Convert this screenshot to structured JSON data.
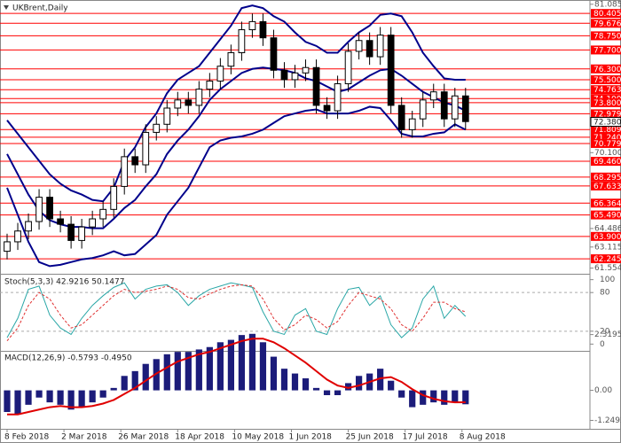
{
  "chart_data": [
    {
      "type": "candlestick",
      "title": "UKBrent,Daily",
      "x": [
        0,
        3,
        6,
        9,
        12,
        15,
        18,
        21,
        24,
        27,
        30,
        33,
        36,
        39,
        42,
        45,
        48,
        51,
        54,
        57,
        60,
        63,
        66,
        69,
        72,
        75,
        78,
        81,
        84,
        87,
        90,
        93,
        96,
        99,
        102,
        105,
        108,
        111,
        114,
        117,
        120,
        123,
        126,
        129
      ],
      "open": [
        62.8,
        63.5,
        64.3,
        65.0,
        66.8,
        65.2,
        64.8,
        63.6,
        64.6,
        65.2,
        65.9,
        67.6,
        69.8,
        69.2,
        71.6,
        72.2,
        73.4,
        74.0,
        73.6,
        74.8,
        75.4,
        76.5,
        77.5,
        79.2,
        79.8,
        78.6,
        76.2,
        75.5,
        76.0,
        76.4,
        73.6,
        73.2,
        75.2,
        77.6,
        78.4,
        77.2,
        78.8,
        73.6,
        71.8,
        72.6,
        74.0,
        74.6,
        72.6,
        74.3
      ],
      "high": [
        64.1,
        64.9,
        65.6,
        67.4,
        67.4,
        65.8,
        65.4,
        65.2,
        65.8,
        66.5,
        68.2,
        70.4,
        70.4,
        72.2,
        72.8,
        74.0,
        74.6,
        74.6,
        75.4,
        76.0,
        77.1,
        78.1,
        79.8,
        80.4,
        80.4,
        79.2,
        76.8,
        76.6,
        77.0,
        77.0,
        74.2,
        75.8,
        78.2,
        79.0,
        79.0,
        79.4,
        79.4,
        74.2,
        73.2,
        74.6,
        75.2,
        75.2,
        74.9,
        74.9
      ],
      "low": [
        62.2,
        62.9,
        63.7,
        64.4,
        64.6,
        64.2,
        63.0,
        63.0,
        64.0,
        64.6,
        65.3,
        67.0,
        68.6,
        68.6,
        71.0,
        71.6,
        72.8,
        73.0,
        73.0,
        74.2,
        74.8,
        75.9,
        76.9,
        78.6,
        78.0,
        75.6,
        74.9,
        74.9,
        75.4,
        73.0,
        72.6,
        72.6,
        74.6,
        77.0,
        76.6,
        76.6,
        73.0,
        71.2,
        71.2,
        72.0,
        73.4,
        72.0,
        72.0,
        71.8
      ],
      "close": [
        63.5,
        64.3,
        65.0,
        66.8,
        65.2,
        64.8,
        63.6,
        64.6,
        65.2,
        65.9,
        67.6,
        69.8,
        69.2,
        71.6,
        72.2,
        73.4,
        74.0,
        73.6,
        74.8,
        75.4,
        76.5,
        77.5,
        79.2,
        79.8,
        78.6,
        76.2,
        75.5,
        76.0,
        76.4,
        73.6,
        73.2,
        75.2,
        77.6,
        78.4,
        77.2,
        78.8,
        73.6,
        71.8,
        72.6,
        74.0,
        74.6,
        72.6,
        74.3,
        72.4
      ],
      "bands": {
        "color": "#00008b",
        "upper": [
          72.5,
          71.5,
          70.5,
          69.5,
          68.5,
          67.8,
          67.3,
          67.0,
          66.6,
          66.5,
          67.5,
          69.5,
          70.5,
          72.0,
          73.0,
          74.5,
          75.5,
          76.0,
          76.5,
          77.5,
          78.5,
          79.5,
          80.8,
          81.0,
          80.8,
          80.2,
          79.8,
          79.0,
          78.3,
          78.0,
          77.5,
          77.5,
          78.3,
          79.0,
          79.5,
          80.3,
          80.4,
          80.2,
          79.0,
          77.5,
          76.5,
          75.6,
          75.5,
          75.5
        ],
        "middle": [
          70.0,
          68.5,
          67.0,
          65.8,
          65.1,
          64.8,
          64.6,
          64.6,
          64.5,
          64.5,
          65.2,
          66.0,
          66.6,
          67.6,
          68.5,
          70.0,
          71.0,
          71.8,
          72.8,
          74.0,
          74.8,
          75.4,
          76.0,
          76.3,
          76.4,
          76.3,
          76.2,
          76.0,
          75.6,
          75.4,
          75.0,
          74.6,
          74.8,
          75.3,
          75.8,
          76.2,
          76.3,
          75.8,
          75.2,
          74.6,
          74.2,
          73.8,
          73.6,
          73.2
        ],
        "lower": [
          67.5,
          65.5,
          63.5,
          62.0,
          61.7,
          61.8,
          62.0,
          62.2,
          62.3,
          62.5,
          62.8,
          62.5,
          62.6,
          63.3,
          64.0,
          65.5,
          66.5,
          67.5,
          69.0,
          70.5,
          71.0,
          71.2,
          71.3,
          71.5,
          71.8,
          72.3,
          72.8,
          73.0,
          73.2,
          73.3,
          73.0,
          73.0,
          73.0,
          73.2,
          73.5,
          73.4,
          72.5,
          71.5,
          71.3,
          71.3,
          71.5,
          71.6,
          72.2,
          71.8
        ]
      },
      "xlim": [
        -1,
        164
      ],
      "xticks": [
        {
          "value": 0,
          "label": "8 Feb 2018"
        },
        {
          "value": 16,
          "label": "2 Mar 2018"
        },
        {
          "value": 32,
          "label": "26 Mar 2018"
        },
        {
          "value": 48,
          "label": "18 Apr 2018"
        },
        {
          "value": 64,
          "label": "10 May 2018"
        },
        {
          "value": 80,
          "label": "1 Jun 2018"
        },
        {
          "value": 96,
          "label": "25 Jun 2018"
        },
        {
          "value": 112,
          "label": "17 Jul 2018"
        },
        {
          "value": 128,
          "label": "8 Aug 2018"
        }
      ],
      "ylim": [
        61.2,
        81.4
      ],
      "yticks": [
        81.085,
        {
          "value": 70.1,
          "label": "70.100"
        },
        64.486,
        63.115,
        61.554
      ],
      "level_color": "#ff0000",
      "levels": [
        80.405,
        79.676,
        {
          "value": 78.75,
          "label": "78.750"
        },
        {
          "value": 77.7,
          "label": "77.700"
        },
        {
          "value": 76.3,
          "label": "76.300"
        },
        {
          "value": 75.5,
          "label": "75.500"
        },
        74.763,
        {
          "value": 74.1,
          "label": "74.100"
        },
        {
          "value": 73.8,
          "label": "73.800"
        },
        72.979,
        71.809,
        {
          "value": 71.24,
          "label": "71.240"
        },
        70.779,
        {
          "value": 69.46,
          "label": "69.460"
        },
        68.295,
        67.633,
        66.364,
        {
          "value": 65.49,
          "label": "65.490"
        },
        {
          "value": 63.9,
          "label": "63.900"
        },
        62.245
      ],
      "current": {
        "value": 72.38,
        "label": "72.380"
      }
    },
    {
      "type": "line",
      "title": "Stoch(5,3,3) 42.9216 50.1477",
      "ylim": [
        -5,
        105
      ],
      "yticks": [
        0,
        20,
        80,
        100
      ],
      "series": [
        {
          "color": "#2aa7a7",
          "dashed": false,
          "values": [
            10,
            40,
            85,
            90,
            45,
            25,
            15,
            40,
            60,
            75,
            88,
            95,
            70,
            85,
            90,
            92,
            80,
            60,
            75,
            85,
            90,
            95,
            92,
            88,
            50,
            20,
            15,
            45,
            55,
            20,
            15,
            55,
            85,
            88,
            60,
            75,
            30,
            10,
            25,
            70,
            90,
            40,
            60,
            42.9216
          ]
        },
        {
          "color": "#e03030",
          "dashed": true,
          "values": [
            5,
            25,
            60,
            80,
            70,
            45,
            25,
            30,
            45,
            60,
            75,
            85,
            80,
            82,
            85,
            90,
            85,
            72,
            70,
            78,
            85,
            90,
            92,
            90,
            70,
            40,
            22,
            30,
            45,
            38,
            25,
            35,
            60,
            80,
            75,
            70,
            55,
            30,
            20,
            40,
            65,
            65,
            55,
            50.1477
          ]
        }
      ]
    },
    {
      "type": "bar",
      "title": "MACD(12,26,9) -0.5793 -0.4950",
      "ylim": [
        -1.6,
        2.6
      ],
      "yticks": [
        2.3195,
        {
          "value": 0,
          "label": "0.00"
        },
        -1.2492
      ],
      "series": [
        {
          "color": "#1c1c7a",
          "kind": "bar",
          "values": [
            -0.9,
            -1.0,
            -0.6,
            -0.3,
            -0.5,
            -0.6,
            -0.8,
            -0.7,
            -0.5,
            -0.3,
            0.1,
            0.6,
            0.8,
            1.1,
            1.3,
            1.5,
            1.6,
            1.6,
            1.7,
            1.8,
            2.0,
            2.1,
            2.3,
            2.35,
            2.0,
            1.4,
            0.9,
            0.7,
            0.5,
            0.1,
            -0.2,
            -0.2,
            0.3,
            0.6,
            0.7,
            0.9,
            0.4,
            -0.3,
            -0.7,
            -0.6,
            -0.5,
            -0.6,
            -0.5,
            -0.5793
          ]
        },
        {
          "color": "#e00000",
          "kind": "line",
          "values": [
            -1.0,
            -1.0,
            -0.9,
            -0.8,
            -0.7,
            -0.65,
            -0.7,
            -0.7,
            -0.65,
            -0.55,
            -0.4,
            -0.15,
            0.1,
            0.4,
            0.7,
            0.95,
            1.2,
            1.35,
            1.5,
            1.6,
            1.75,
            1.9,
            2.05,
            2.15,
            2.15,
            2.0,
            1.75,
            1.45,
            1.15,
            0.8,
            0.45,
            0.2,
            0.1,
            0.2,
            0.35,
            0.5,
            0.55,
            0.35,
            0.05,
            -0.2,
            -0.35,
            -0.45,
            -0.5,
            -0.495
          ]
        }
      ]
    }
  ]
}
